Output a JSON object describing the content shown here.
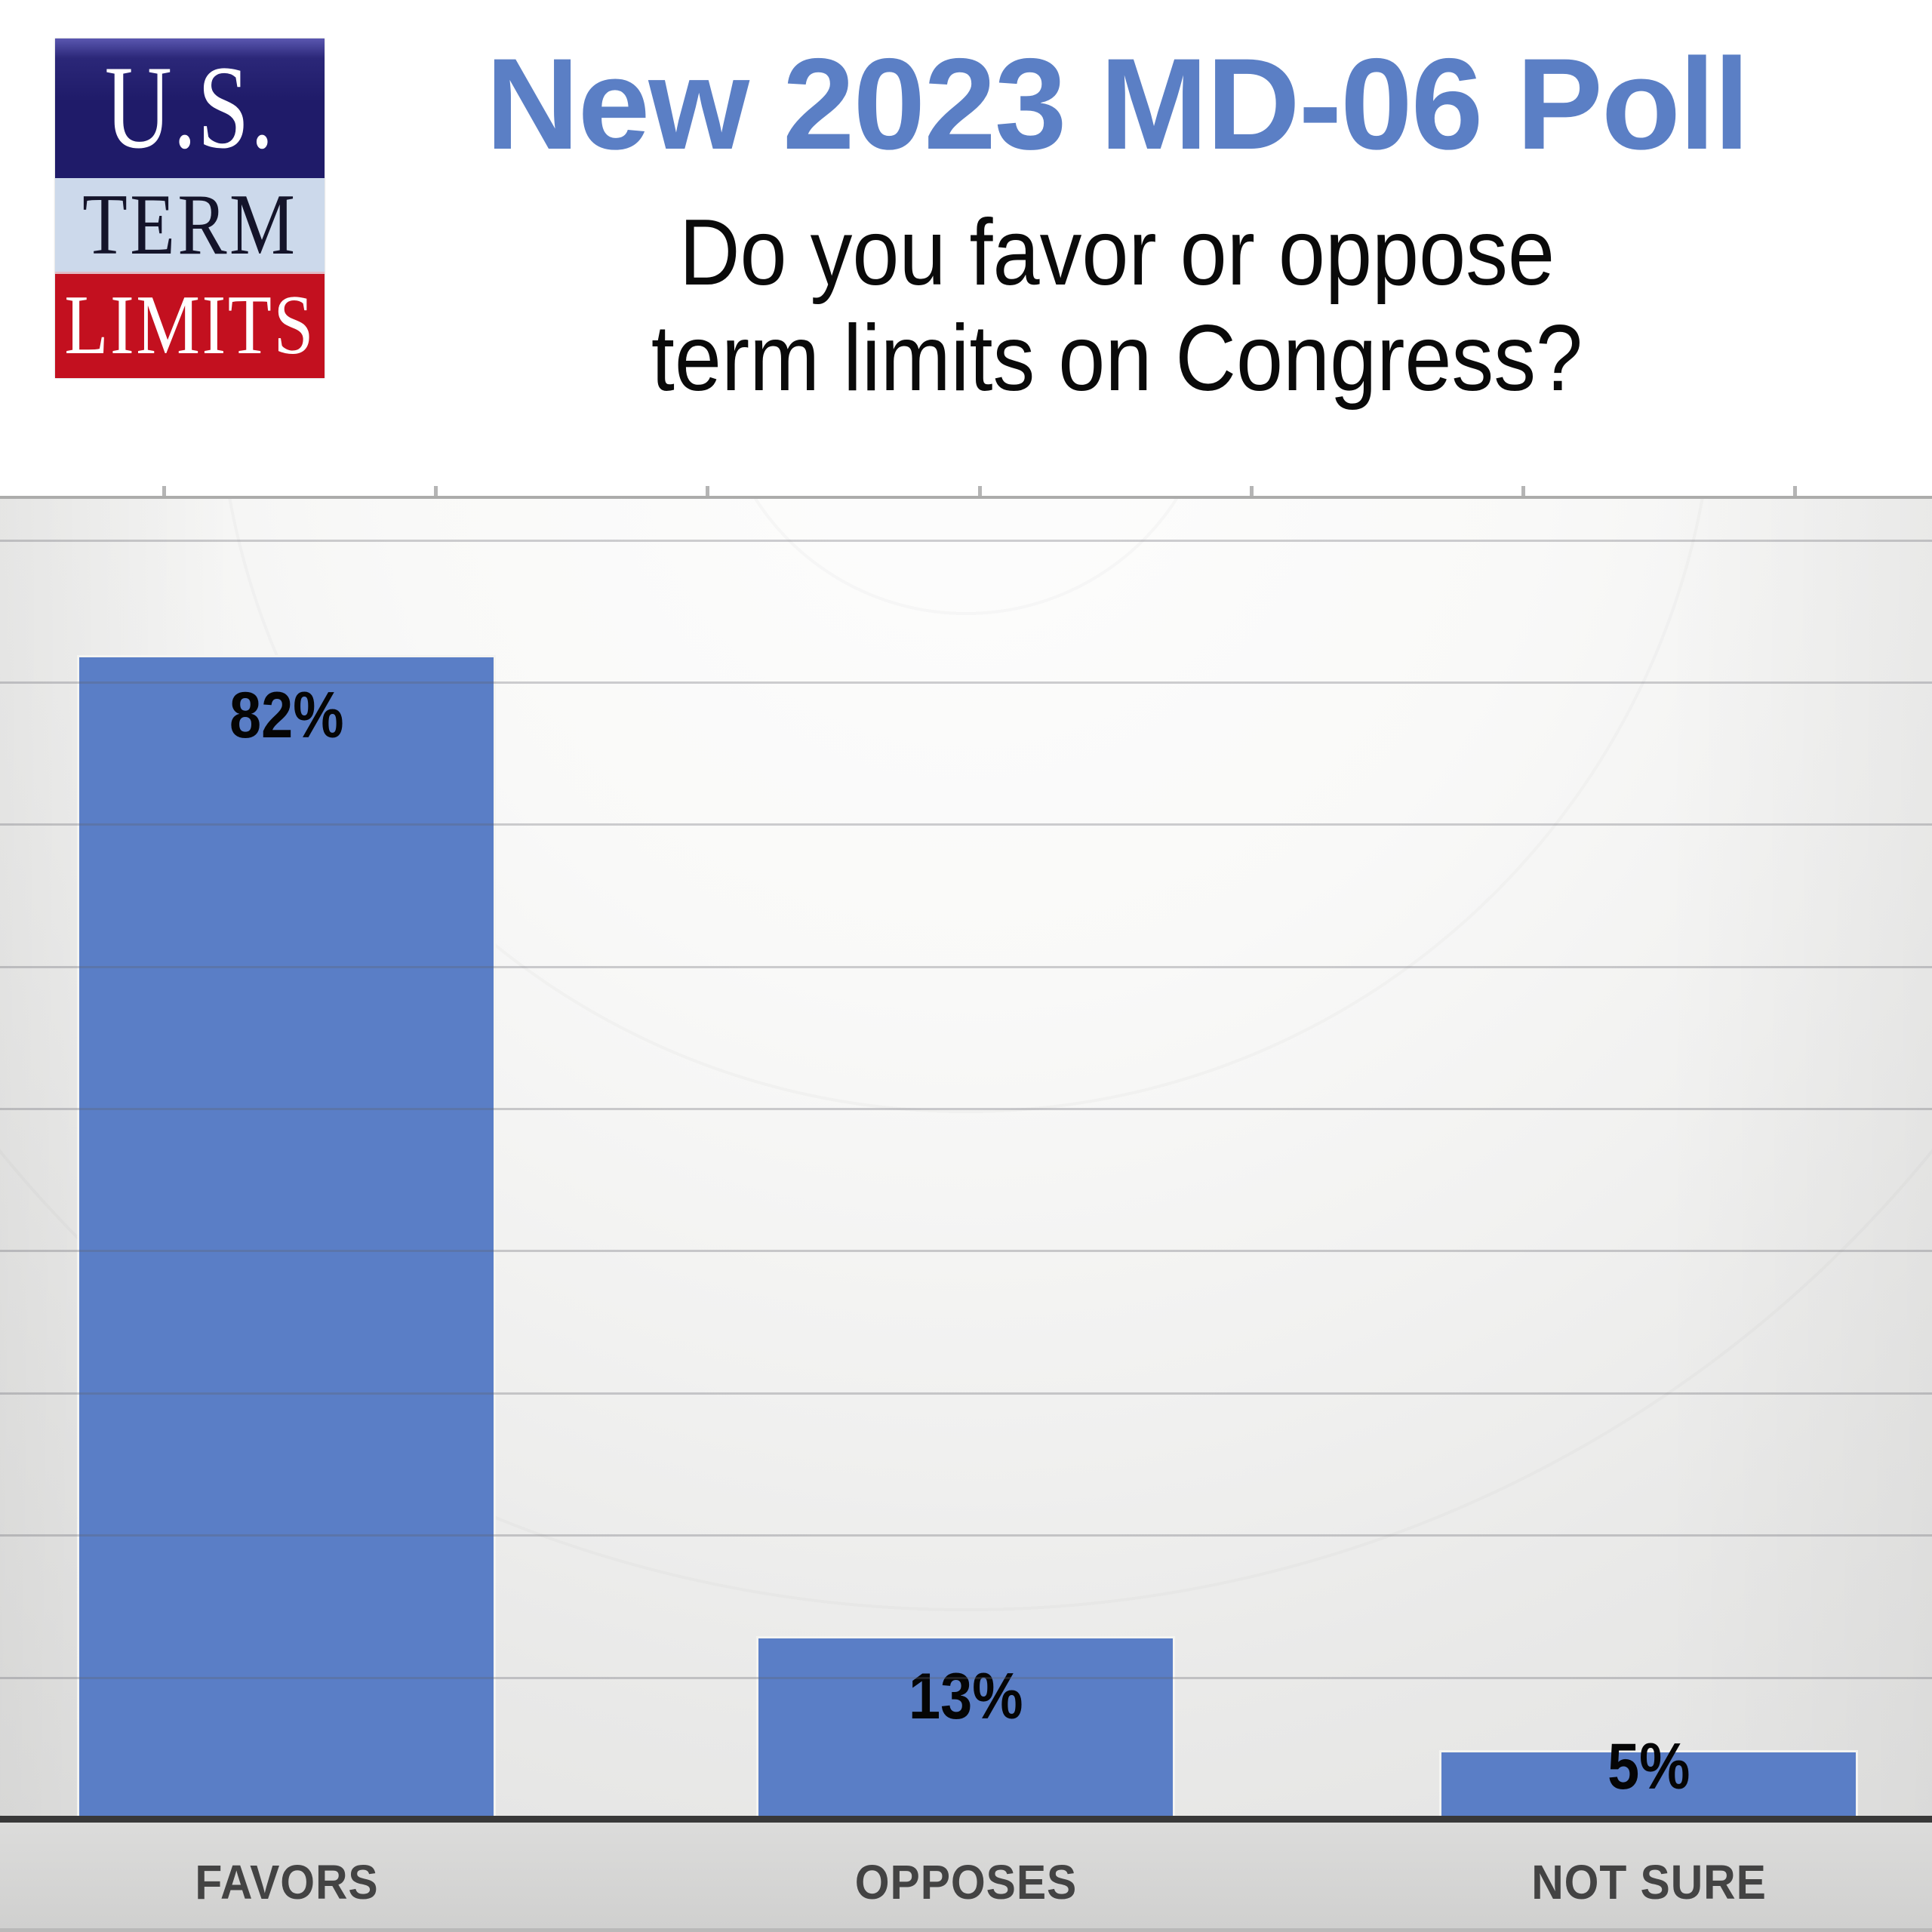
{
  "logo": {
    "line1": "U.S.",
    "line2": "TERM",
    "line3": "LIMITS"
  },
  "header": {
    "title": "New 2023 MD-06 Poll",
    "question_lines": [
      "Do you favor or oppose",
      "term limits on Congress?"
    ]
  },
  "colors": {
    "title_blue": "#5b7fc5",
    "bar_blue": "#5a7ec6",
    "logo_navy": "#1f1b69",
    "logo_light_blue": "#ccd9eb",
    "logo_red": "#c3101f",
    "axis_dark": "#383838",
    "category_label_gray": "#434343",
    "plot_bg_gray": "#e9e9e8"
  },
  "chart_data": {
    "type": "bar",
    "title": "New 2023 MD-06 Poll",
    "subtitle": "Do you favor or oppose term limits on Congress?",
    "categories": [
      "FAVORS",
      "OPPOSES",
      "NOT SURE"
    ],
    "values": [
      82,
      13,
      5
    ],
    "value_labels": [
      "82%",
      "13%",
      "5%"
    ],
    "ylabel": "",
    "xlabel": "",
    "ylim": [
      0,
      93
    ],
    "gridline_interval": 10,
    "grid": "horizontal",
    "legend": "none"
  }
}
